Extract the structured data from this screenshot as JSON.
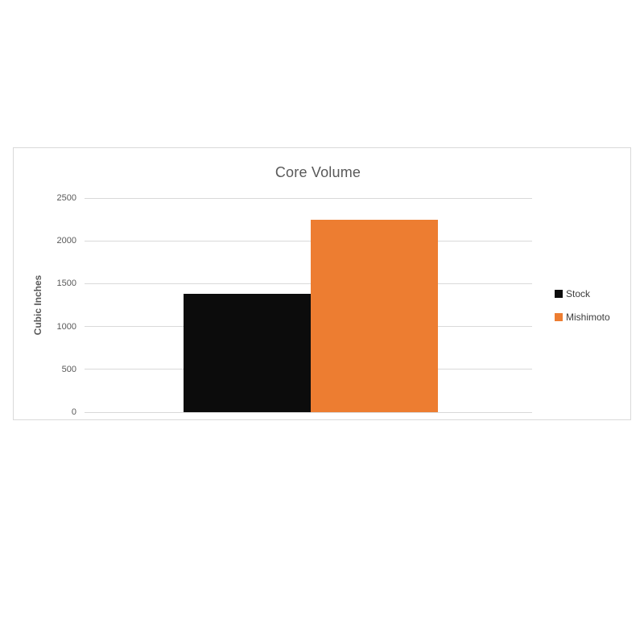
{
  "page": {
    "background": "#ffffff"
  },
  "chart_data": {
    "type": "bar",
    "title": "Core Volume",
    "xlabel": "",
    "ylabel": "Cubic Inches",
    "categories": [
      ""
    ],
    "series": [
      {
        "name": "Stock",
        "color": "#0c0c0c",
        "values": [
          1380
        ]
      },
      {
        "name": "Mishimoto",
        "color": "#ed7d31",
        "values": [
          2250
        ]
      }
    ],
    "ylim": [
      0,
      2500
    ],
    "yticks": [
      0,
      500,
      1000,
      1500,
      2000,
      2500
    ],
    "grid": true,
    "legend_position": "right",
    "colors": {
      "grid": "#d9d9d9",
      "frame_border": "#d9d9d9",
      "title_text": "#595959",
      "tick_text": "#595959",
      "legend_text": "#3d3d3d",
      "plot_background": "#ffffff"
    }
  }
}
